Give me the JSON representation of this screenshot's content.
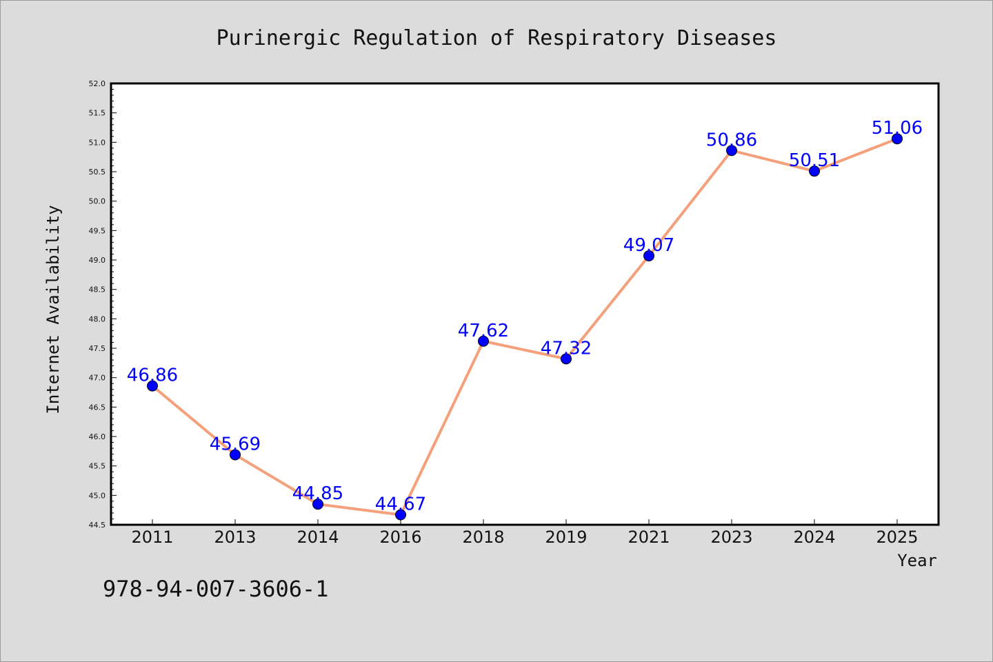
{
  "chart_data": {
    "type": "line",
    "title": "Purinergic Regulation of Respiratory Diseases",
    "xlabel": "Year",
    "ylabel": "Internet Availability",
    "categories": [
      "2011",
      "2013",
      "2014",
      "2016",
      "2018",
      "2019",
      "2021",
      "2023",
      "2024",
      "2025"
    ],
    "series": [
      {
        "values": [
          46.86,
          45.69,
          44.85,
          44.67,
          47.62,
          47.32,
          49.07,
          50.86,
          50.51,
          51.06
        ],
        "data_labels": [
          "46.86",
          "45.69",
          "44.85",
          "44.67",
          "47.62",
          "47.32",
          "49.07",
          "50.86",
          "50.51",
          "51.06"
        ],
        "line_color": "#f4a07a",
        "marker_color": "#0000ff"
      }
    ],
    "ylim": [
      44.5,
      52.0
    ],
    "yticks": [
      "44.5",
      "45.0",
      "45.5",
      "46.0",
      "46.5",
      "47.0",
      "47.5",
      "48.0",
      "48.5",
      "49.0",
      "49.5",
      "50.0",
      "50.5",
      "51.0",
      "51.5",
      "52.0"
    ],
    "grid": false,
    "background_color": "#dcdcdc",
    "plot_background_color": "#ffffff"
  },
  "footer_text": "978-94-007-3606-1"
}
